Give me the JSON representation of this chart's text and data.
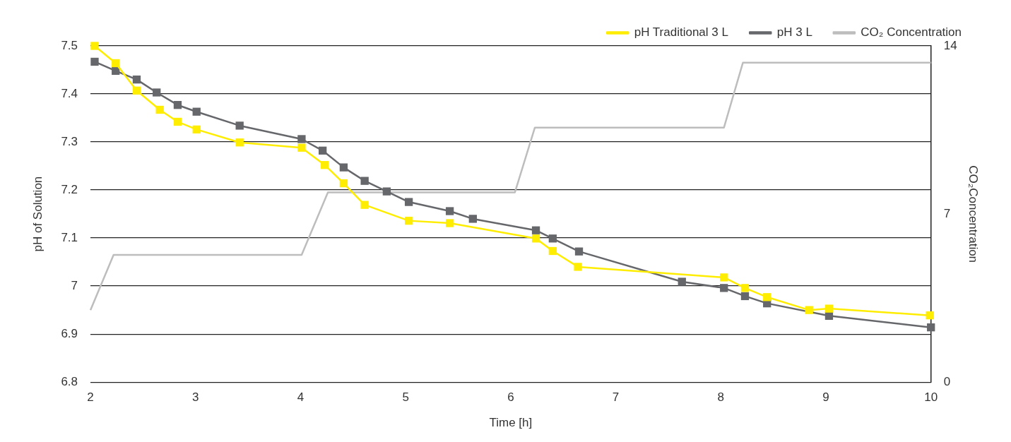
{
  "chart_data": {
    "type": "line",
    "xlabel": "Time [h]",
    "ylabel": "pH of Solution",
    "y2label": "CO₂Concentration",
    "xlim": [
      2,
      10
    ],
    "xticks": [
      2,
      3,
      4,
      5,
      6,
      7,
      8,
      9,
      10
    ],
    "ylim": [
      6.8,
      7.5
    ],
    "yticks": [
      6.8,
      6.9,
      7,
      7.1,
      7.2,
      7.3,
      7.4,
      7.5
    ],
    "y2lim": [
      0,
      14
    ],
    "y2ticks": [
      0,
      7,
      14
    ],
    "grid": "y",
    "legend": "top right",
    "marker": "square",
    "series": [
      {
        "name": "pH Traditional 3 L",
        "color": "#ffed00",
        "x": [
          2.04,
          2.24,
          2.44,
          2.66,
          2.83,
          3.01,
          3.42,
          4.01,
          4.23,
          4.41,
          4.61,
          5.03,
          5.42,
          6.24,
          6.4,
          6.64,
          8.03,
          8.23,
          8.44,
          8.84,
          9.03,
          9.99
        ],
        "values": [
          7.5,
          7.464,
          7.407,
          7.367,
          7.342,
          7.326,
          7.299,
          7.288,
          7.252,
          7.214,
          7.169,
          7.136,
          7.131,
          7.099,
          7.073,
          7.04,
          7.018,
          6.996,
          6.977,
          6.95,
          6.953,
          6.939
        ]
      },
      {
        "name": "pH 3 L",
        "color": "#66676b",
        "x": [
          2.04,
          2.24,
          2.44,
          2.63,
          2.83,
          3.01,
          3.42,
          4.01,
          4.21,
          4.41,
          4.61,
          4.82,
          5.03,
          5.42,
          5.64,
          6.24,
          6.4,
          6.65,
          7.63,
          8.03,
          8.23,
          8.44,
          9.03,
          10
        ],
        "values": [
          7.467,
          7.448,
          7.43,
          7.403,
          7.377,
          7.363,
          7.334,
          7.306,
          7.282,
          7.247,
          7.219,
          7.197,
          7.175,
          7.156,
          7.14,
          7.116,
          7.099,
          7.072,
          7.009,
          6.996,
          6.979,
          6.964,
          6.938,
          6.914
        ]
      },
      {
        "name": "CO₂ Concentration",
        "color": "#bdbdbd",
        "axis": "y2",
        "marker": "none",
        "x": [
          2,
          2.22,
          4.01,
          4.26,
          6.04,
          6.23,
          8.03,
          8.21,
          10
        ],
        "values": [
          3,
          5.3,
          5.3,
          7.9,
          7.9,
          10.6,
          10.6,
          13.3,
          13.3
        ]
      }
    ]
  }
}
